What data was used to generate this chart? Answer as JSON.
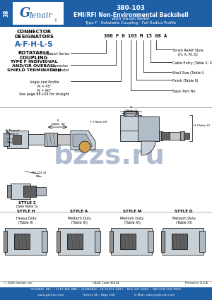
{
  "title_part": "380-103",
  "title_line1": "EMI/RFI Non-Environmental Backshell",
  "title_line2": "with Strain Relief",
  "title_line3": "Type F - Rotatable Coupling - Full Radius Profile",
  "header_blue": "#1f5fa6",
  "series_label": "38",
  "connector_designators": "CONNECTOR\nDESIGNATORS",
  "designators": "A-F-H-L-S",
  "coupling": "ROTATABLE\nCOUPLING",
  "shield": "TYPE F INDIVIDUAL\nAND/OR OVERALL\nSHIELD TERMINATION",
  "part_number_example": "380 F N 103 M 15 08 A",
  "footer_line1": "GLENAIR, INC. • 1211 AIR WAY • GLENDALE, CA 91201-2497 • 818-247-6000 • FAX 818-500-9912",
  "footer_line2": "www.glenair.com                    Series 38 - Page 106                    E-Mail: sales@glenair.com",
  "footer_copyright": "© 2005 Glenair, Inc.",
  "footer_cage": "CAGE Code 06324",
  "footer_printed": "Printed in U.S.A.",
  "bg_white": "#ffffff",
  "text_black": "#000000",
  "text_blue_designator": "#1f5fa6",
  "watermark_color": "#b0bcd0",
  "connector_gray": "#c8d0d8",
  "connector_dark": "#909090",
  "connector_darker": "#606060"
}
